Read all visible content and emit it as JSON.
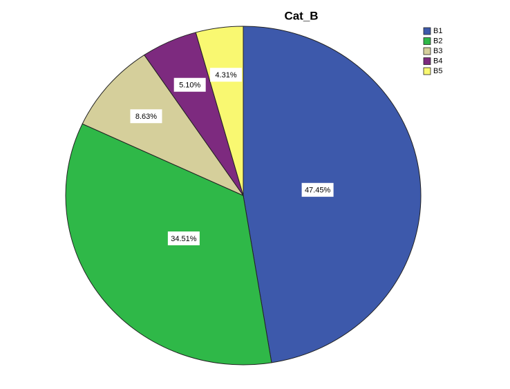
{
  "chart_data": {
    "type": "pie",
    "title": "Cat_B",
    "categories": [
      "B1",
      "B2",
      "B3",
      "B4",
      "B5"
    ],
    "values": [
      47.45,
      34.51,
      8.63,
      5.1,
      4.31
    ],
    "value_labels": [
      "47.45%",
      "34.51%",
      "8.63%",
      "5.10%",
      "4.31%"
    ],
    "colors": [
      "#3d59ab",
      "#2fb848",
      "#d5cf9b",
      "#7d2a7f",
      "#f9f871"
    ],
    "legend": "top-right"
  }
}
